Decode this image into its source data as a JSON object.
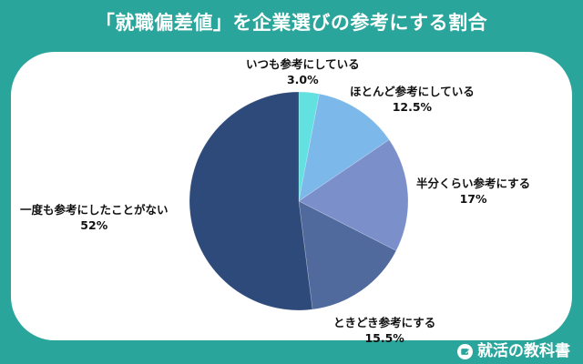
{
  "title": "「就職偏差値」を企業選びの参考にする割合",
  "brand": {
    "name": "就活の教科書",
    "icon": "notebook-pencil-icon"
  },
  "colors": {
    "background": "#2aa59b",
    "panel": "#ffffff",
    "title_text": "#ffffff",
    "label_text": "#111111"
  },
  "chart_data": {
    "type": "pie",
    "title": "「就職偏差値」を企業選びの参考にする割合",
    "start_angle": "12 o'clock",
    "direction": "clockwise",
    "categories": [
      "いつも参考にしている",
      "ほとんど参考にしている",
      "半分くらい参考にする",
      "ときどき参考にする",
      "一度も参考にしたことがない"
    ],
    "values": [
      3.0,
      12.5,
      17,
      15.5,
      52
    ],
    "value_labels": [
      "3.0%",
      "12.5%",
      "17%",
      "15.5%",
      "52%"
    ],
    "colors": [
      "#63e0e0",
      "#7db8ea",
      "#7b8fcb",
      "#506a9e",
      "#2e4a7a"
    ],
    "unit": "%",
    "legend": "none (direct labels)"
  },
  "labels": [
    {
      "name": "いつも参考にしている",
      "pct": "3.0%"
    },
    {
      "name": "ほとんど参考にしている",
      "pct": "12.5%"
    },
    {
      "name": "半分くらい参考にする",
      "pct": "17%"
    },
    {
      "name": "ときどき参考にする",
      "pct": "15.5%"
    },
    {
      "name": "一度も参考にしたことがない",
      "pct": "52%"
    }
  ]
}
